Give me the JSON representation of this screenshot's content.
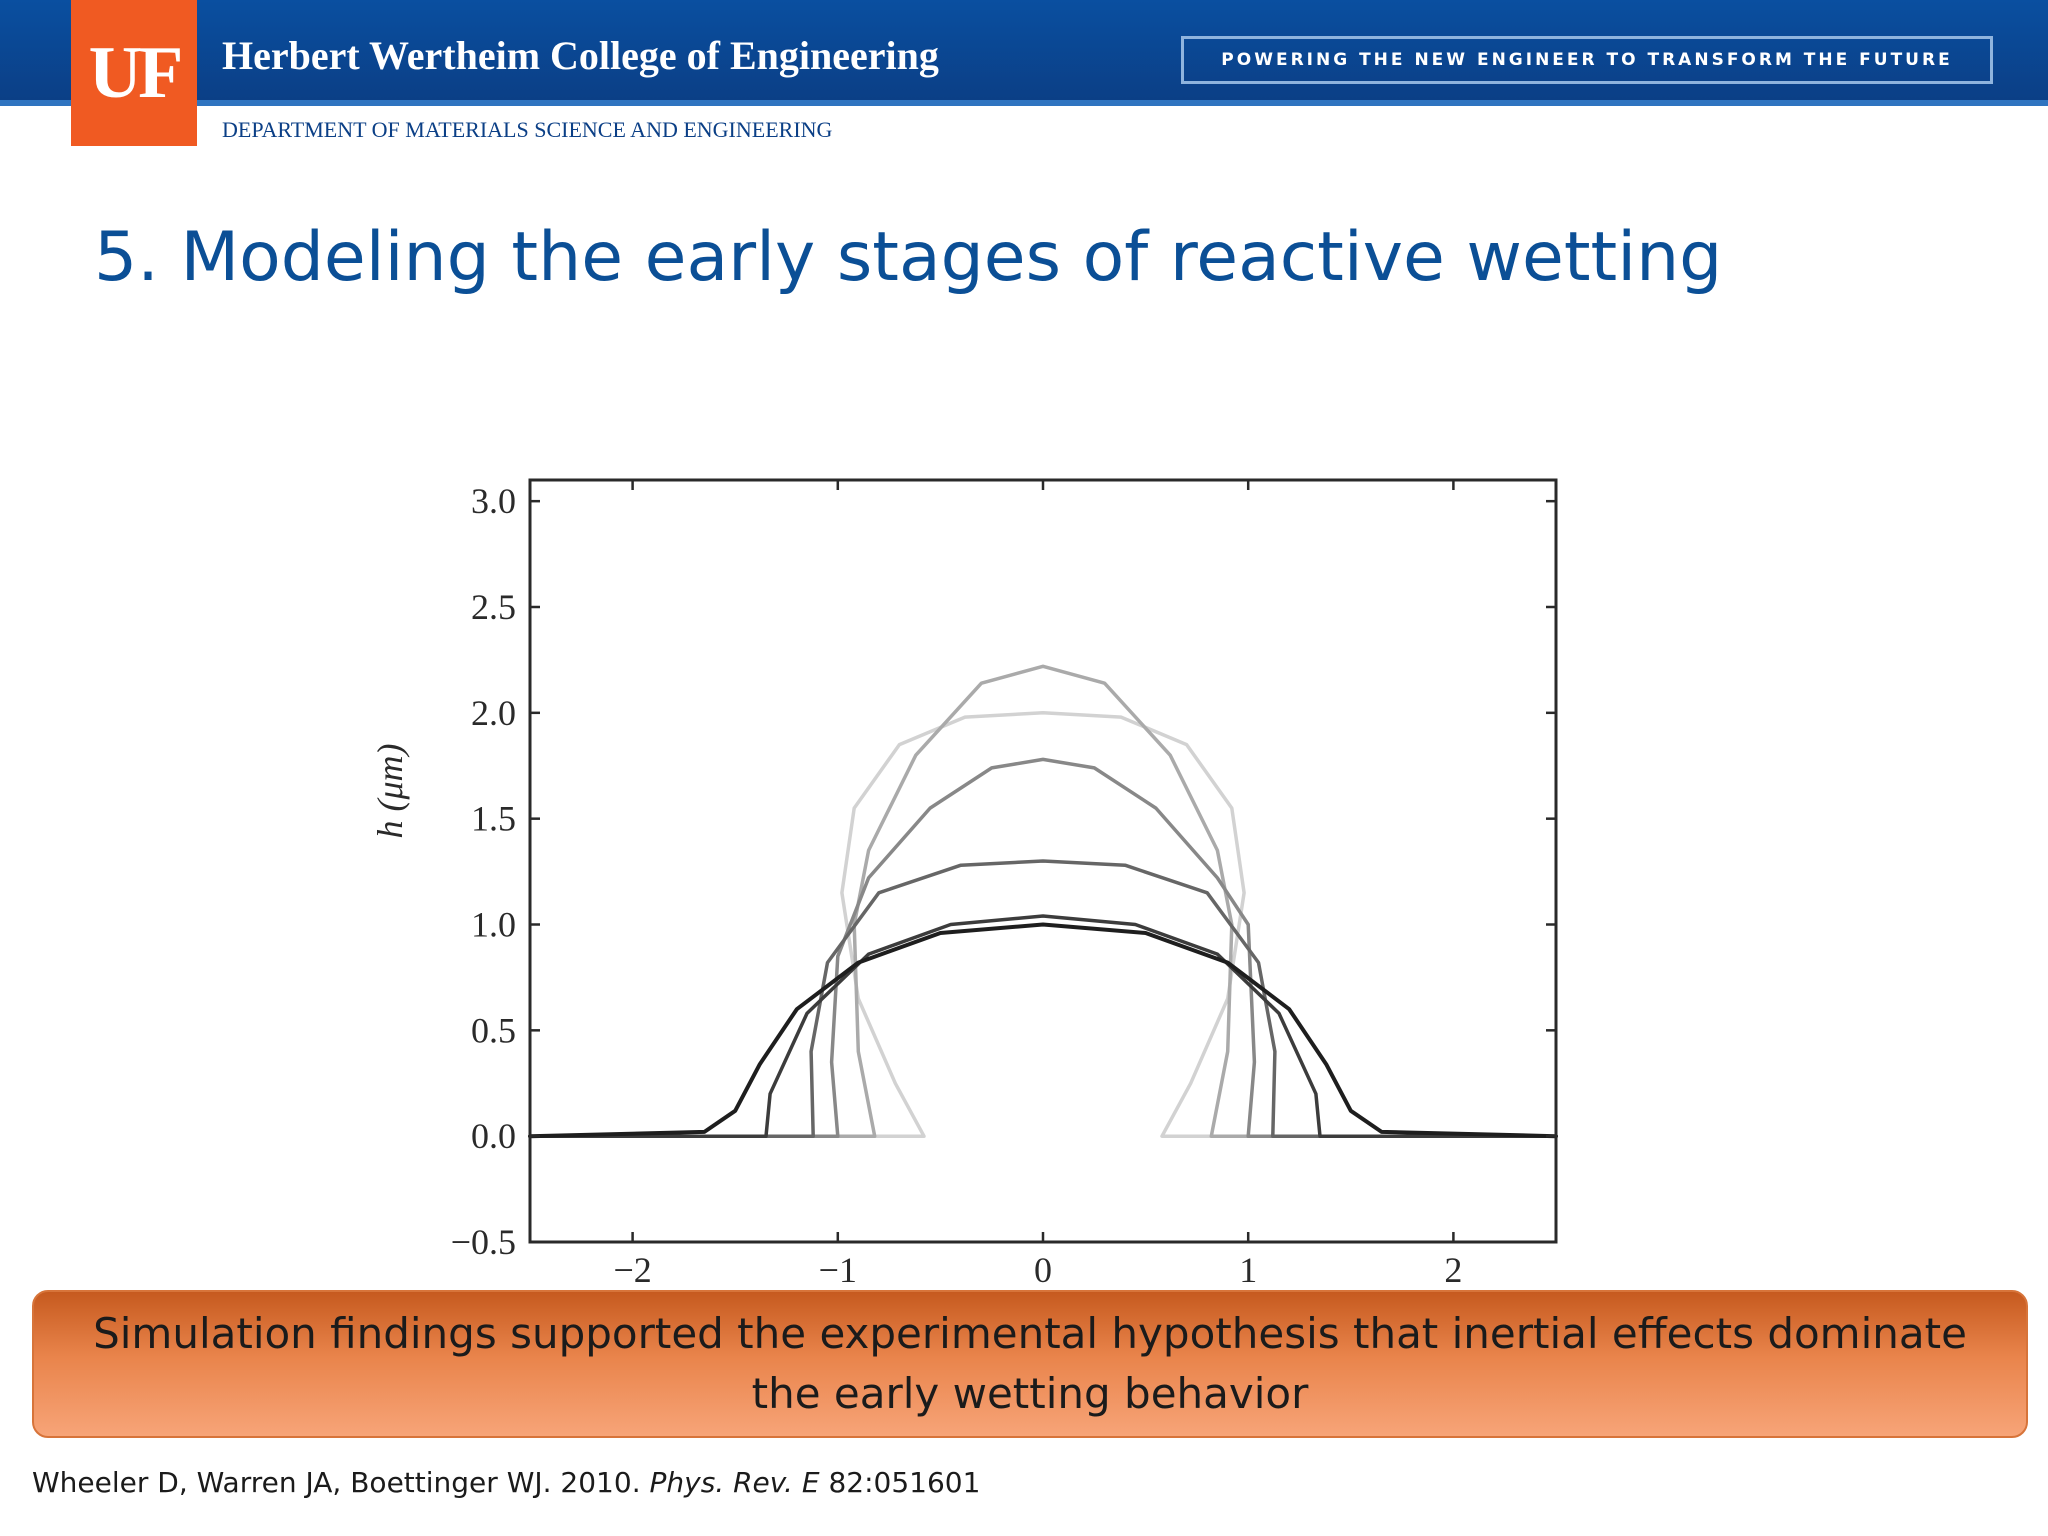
{
  "header": {
    "logo_text": "UF",
    "college": "Herbert Wertheim College of Engineering",
    "tagline": "POWERING THE NEW ENGINEER TO TRANSFORM THE FUTURE",
    "department": "DEPARTMENT OF MATERIALS SCIENCE AND ENGINEERING"
  },
  "slide": {
    "title": "5. Modeling the early stages of reactive wetting",
    "callout": "Simulation findings supported the experimental hypothesis that inertial effects dominate the early wetting behavior"
  },
  "citation": {
    "authors": "Wheeler D, Warren JA, Boettinger WJ. 2010.",
    "journal": "Phys. Rev. E",
    "ref": "82:051601"
  },
  "chart_data": {
    "type": "line",
    "title": "",
    "xlabel": "",
    "ylabel": "h (μm)",
    "xlim": [
      -2.5,
      2.5
    ],
    "ylim": [
      -0.5,
      3.1
    ],
    "xticks": [
      -2,
      -1,
      0,
      1,
      2
    ],
    "xtick_labels": [
      "−2",
      "−1",
      "0",
      "1",
      "2"
    ],
    "yticks": [
      -0.5,
      0.0,
      0.5,
      1.0,
      1.5,
      2.0,
      2.5,
      3.0
    ],
    "ytick_labels": [
      "−0.5",
      "0.0",
      "0.5",
      "1.0",
      "1.5",
      "2.0",
      "2.5",
      "3.0"
    ],
    "grid": false,
    "legend": "none",
    "series": [
      {
        "color": "#d2d2d2",
        "width": 3.5,
        "x": [
          -2.5,
          -0.58,
          -0.72,
          -0.9,
          -0.98,
          -0.92,
          -0.7,
          -0.38,
          0.0,
          0.38,
          0.7,
          0.92,
          0.98,
          0.9,
          0.72,
          0.58,
          2.5
        ],
        "y": [
          0.0,
          0.0,
          0.25,
          0.65,
          1.15,
          1.55,
          1.85,
          1.98,
          2.0,
          1.98,
          1.85,
          1.55,
          1.15,
          0.65,
          0.25,
          0.0,
          0.0
        ]
      },
      {
        "color": "#aaaaaa",
        "width": 3.5,
        "x": [
          -2.5,
          -0.82,
          -0.9,
          -0.92,
          -0.85,
          -0.62,
          -0.3,
          0.0,
          0.3,
          0.62,
          0.85,
          0.92,
          0.9,
          0.82,
          2.5
        ],
        "y": [
          0.0,
          0.0,
          0.4,
          1.0,
          1.35,
          1.8,
          2.14,
          2.22,
          2.14,
          1.8,
          1.35,
          1.0,
          0.4,
          0.0,
          0.0
        ]
      },
      {
        "color": "#888888",
        "width": 3.5,
        "x": [
          -2.5,
          -1.0,
          -1.03,
          -1.0,
          -0.85,
          -0.55,
          -0.25,
          0.0,
          0.25,
          0.55,
          0.85,
          1.0,
          1.03,
          1.0,
          2.5
        ],
        "y": [
          0.0,
          0.0,
          0.35,
          0.85,
          1.22,
          1.55,
          1.74,
          1.78,
          1.74,
          1.55,
          1.22,
          1.0,
          0.35,
          0.0,
          0.0
        ]
      },
      {
        "color": "#666666",
        "width": 3.5,
        "x": [
          -2.5,
          -1.12,
          -1.13,
          -1.05,
          -0.8,
          -0.4,
          0.0,
          0.4,
          0.8,
          1.05,
          1.13,
          1.12,
          2.5
        ],
        "y": [
          0.0,
          0.0,
          0.4,
          0.82,
          1.15,
          1.28,
          1.3,
          1.28,
          1.15,
          0.82,
          0.4,
          0.0,
          0.0
        ]
      },
      {
        "color": "#3c3c3c",
        "width": 3.5,
        "x": [
          -2.5,
          -1.35,
          -1.33,
          -1.15,
          -0.85,
          -0.45,
          0.0,
          0.45,
          0.85,
          1.15,
          1.33,
          1.35,
          2.5
        ],
        "y": [
          0.0,
          0.0,
          0.2,
          0.58,
          0.86,
          1.0,
          1.04,
          1.0,
          0.86,
          0.58,
          0.2,
          0.0,
          0.0
        ]
      },
      {
        "color": "#1e1e1e",
        "width": 4,
        "x": [
          -2.5,
          -1.65,
          -1.5,
          -1.38,
          -1.2,
          -0.9,
          -0.5,
          0.0,
          0.5,
          0.9,
          1.2,
          1.38,
          1.5,
          1.65,
          2.5
        ],
        "y": [
          0.0,
          0.02,
          0.12,
          0.34,
          0.6,
          0.82,
          0.96,
          1.0,
          0.96,
          0.82,
          0.6,
          0.34,
          0.12,
          0.02,
          0.0
        ]
      }
    ]
  }
}
